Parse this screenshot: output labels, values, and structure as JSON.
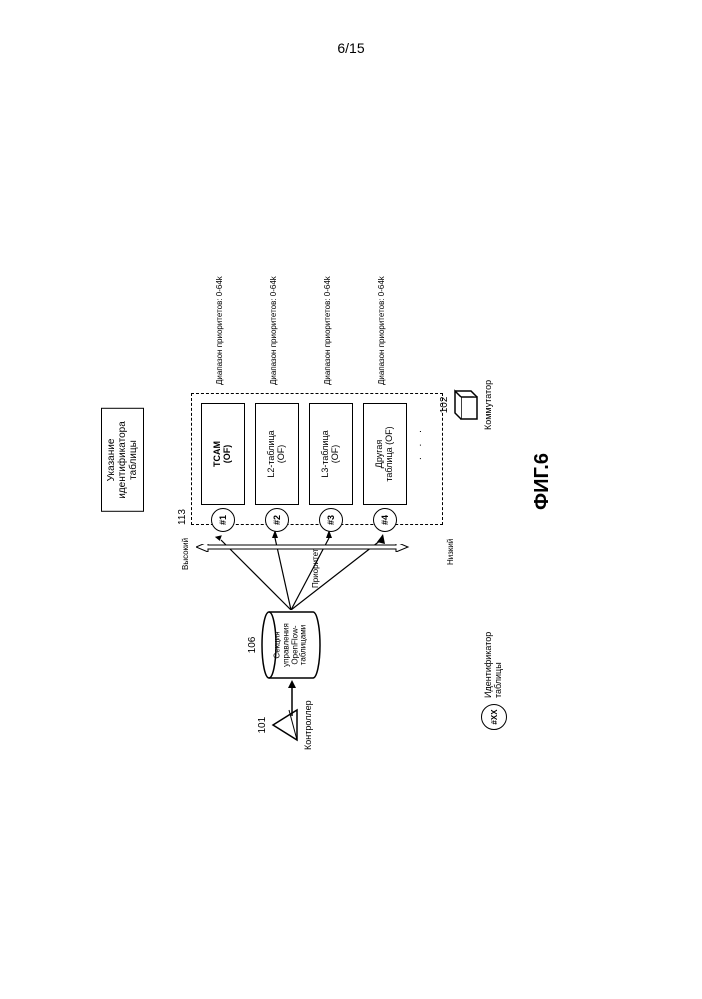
{
  "page_number": "6/15",
  "title_box": "Указание\nидентификатора\nтаблицы",
  "controller": {
    "ref": "101",
    "label": "Контроллер"
  },
  "mgmt_section": {
    "ref": "106",
    "label": "Секция\nуправления\nOpenFlow-\nтаблицами"
  },
  "dashed_ref": "113",
  "tables": [
    {
      "id": "#1",
      "name": "TCAM",
      "suffix": "(OF)",
      "range": "Диапазон приоритетов: 0-64k"
    },
    {
      "id": "#2",
      "name": "L2-таблица",
      "suffix": "(OF)",
      "range": "Диапазон приоритетов: 0-64k"
    },
    {
      "id": "#3",
      "name": "L3-таблица",
      "suffix": "(OF)",
      "range": "Диапазон приоритетов: 0-64k"
    },
    {
      "id": "#4",
      "name": "Другая",
      "suffix": "таблица (OF)",
      "range": "Диапазон приоритетов: 0-64k"
    }
  ],
  "priority": {
    "high": "Высокий",
    "low": "Низкий",
    "label": "Приоритет"
  },
  "switch": {
    "ref": "102",
    "label": "Коммутатор"
  },
  "legend": {
    "id": "#XX",
    "text": "Идентификатор\nтаблицы"
  },
  "figure_label": "ФИГ.6",
  "colors": {
    "stroke": "#000000",
    "background": "#ffffff"
  }
}
